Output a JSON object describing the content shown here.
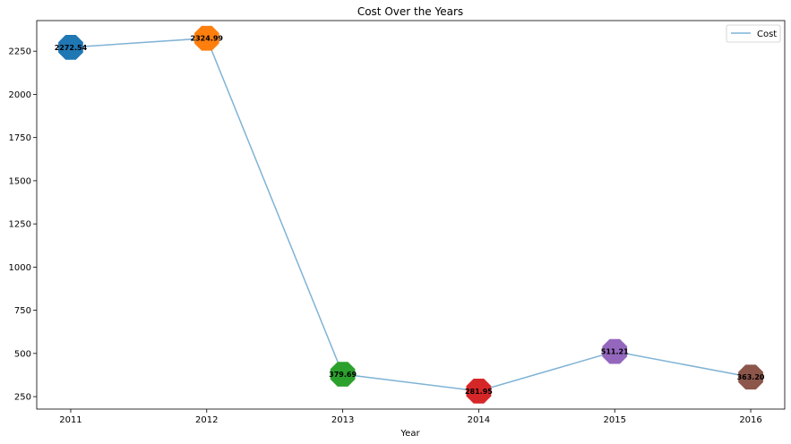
{
  "chart_data": {
    "type": "line",
    "title": "Cost Over the Years",
    "xlabel": "Year",
    "ylabel": "",
    "x": [
      2011,
      2012,
      2013,
      2014,
      2015,
      2016
    ],
    "x_tick_labels": [
      "2011",
      "2012",
      "2013",
      "2014",
      "2015",
      "2016"
    ],
    "series": [
      {
        "name": "Cost",
        "values": [
          2272.54,
          2324.99,
          379.69,
          281.95,
          511.21,
          363.2
        ],
        "color": "#7fb3d5"
      }
    ],
    "point_labels": [
      "2272.54",
      "2324.99",
      "379.69",
      "281.95",
      "511.21",
      "363.20"
    ],
    "point_colors": [
      "#1f77b4",
      "#ff7f0e",
      "#2ca02c",
      "#d62728",
      "#9467bd",
      "#8c564b"
    ],
    "marker": "octagon",
    "y_ticks": [
      250,
      500,
      750,
      1000,
      1250,
      1500,
      1750,
      2000,
      2250
    ],
    "ylim": [
      177.8,
      2427.2
    ],
    "xlim": [
      2010.75,
      2016.25
    ],
    "grid": false,
    "legend_position": "top-right"
  }
}
